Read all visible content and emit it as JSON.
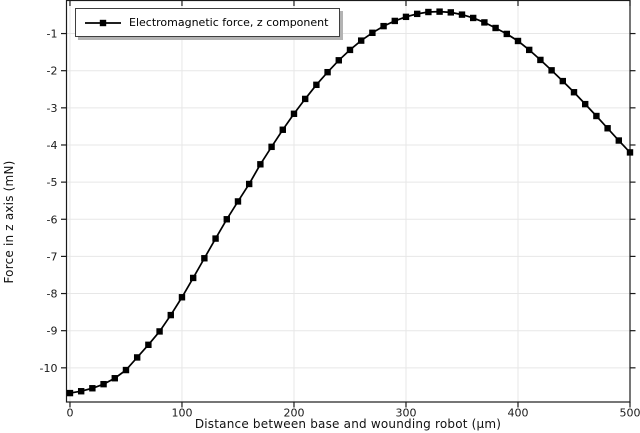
{
  "colors": {
    "background": "#ffffff",
    "grid": "#e7e7e7",
    "axis": "#1a1a1a",
    "tick_label": "#1a1a1a",
    "series": "#000000",
    "legend_border": "#3f3f3f",
    "legend_shadow": "#b3b3b3"
  },
  "chart_data": {
    "type": "line",
    "title": "",
    "xlabel": "Distance between base and wounding robot (μm)",
    "ylabel": "Force in z axis (mN)",
    "xlim": [
      -3.1,
      500
    ],
    "ylim": [
      -10.92,
      -0.11
    ],
    "x_ticks": [
      0,
      100,
      200,
      300,
      400,
      500
    ],
    "y_ticks": [
      -1,
      -2,
      -3,
      -4,
      -5,
      -6,
      -7,
      -8,
      -9,
      -10
    ],
    "grid": true,
    "legend_position": "top-left",
    "series": [
      {
        "name": "Electromagnetic force, z component",
        "color": "#000000",
        "marker": "square",
        "x": [
          0,
          10,
          20,
          30,
          40,
          50,
          60,
          70,
          80,
          90,
          100,
          110,
          120,
          130,
          140,
          150,
          160,
          170,
          180,
          190,
          200,
          210,
          220,
          230,
          240,
          250,
          260,
          270,
          280,
          290,
          300,
          310,
          320,
          330,
          340,
          350,
          360,
          370,
          380,
          390,
          400,
          410,
          420,
          430,
          440,
          450,
          460,
          470,
          480,
          490,
          500
        ],
        "y": [
          -10.68,
          -10.63,
          -10.55,
          -10.44,
          -10.28,
          -10.06,
          -9.72,
          -9.38,
          -9.02,
          -8.58,
          -8.1,
          -7.58,
          -7.05,
          -6.52,
          -6.0,
          -5.52,
          -5.05,
          -4.52,
          -4.05,
          -3.59,
          -3.16,
          -2.76,
          -2.38,
          -2.04,
          -1.72,
          -1.44,
          -1.19,
          -0.98,
          -0.8,
          -0.66,
          -0.55,
          -0.47,
          -0.42,
          -0.41,
          -0.43,
          -0.49,
          -0.58,
          -0.7,
          -0.85,
          -1.01,
          -1.2,
          -1.44,
          -1.71,
          -1.99,
          -2.28,
          -2.58,
          -2.9,
          -3.22,
          -3.55,
          -3.88,
          -4.2
        ]
      }
    ]
  }
}
